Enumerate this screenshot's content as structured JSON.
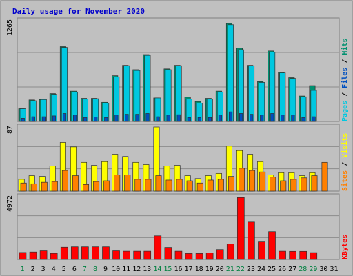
{
  "colors": {
    "background": "#c0c0c0",
    "border": "#808080",
    "title": "#0000cc",
    "hits": "#00c8e0",
    "files": "#009070",
    "pages": "#0050c0",
    "visits": "#ffff00",
    "sites": "#ff8000",
    "kbytes": "#ff0000",
    "weekend_label": "#008040",
    "grid": "#8c8c8c"
  },
  "chart_data": {
    "title": "Daily usage for November 2020",
    "type": "bar",
    "categories": [
      "1",
      "2",
      "3",
      "4",
      "5",
      "6",
      "7",
      "8",
      "9",
      "10",
      "11",
      "12",
      "13",
      "14",
      "15",
      "16",
      "17",
      "18",
      "19",
      "20",
      "21",
      "22",
      "23",
      "24",
      "25",
      "26",
      "27",
      "28",
      "29",
      "30",
      "31"
    ],
    "weekend_days": [
      "1",
      "7",
      "8",
      "14",
      "15",
      "21",
      "22",
      "28",
      "29"
    ],
    "panels": [
      {
        "ymax_label": "1265",
        "ylim": [
          0,
          1265
        ],
        "axis_labels": [
          {
            "text": "Pages",
            "color": "#00c8e0"
          },
          {
            "text": " / ",
            "color": "#000000"
          },
          {
            "text": "Files",
            "color": "#0050c0"
          },
          {
            "text": " / ",
            "color": "#000000"
          },
          {
            "text": "Hits",
            "color": "#009070"
          }
        ],
        "series": [
          {
            "name": "Hits",
            "color": "#009070",
            "values": [
              160,
              270,
              275,
              350,
              940,
              380,
              290,
              290,
              240,
              575,
              705,
              650,
              840,
              295,
              660,
              705,
              305,
              250,
              290,
              380,
              1230,
              920,
              705,
              500,
              885,
              620,
              550,
              320,
              450,
              0
            ]
          },
          {
            "name": "Files",
            "color": "#00c8e0",
            "values": [
              160,
              260,
              275,
              340,
              930,
              370,
              280,
              285,
              230,
              560,
              700,
              640,
              830,
              295,
              650,
              700,
              280,
              230,
              280,
              370,
              1215,
              900,
              700,
              490,
              870,
              610,
              540,
              310,
              390,
              0
            ]
          },
          {
            "name": "Pages",
            "color": "#0050c0",
            "values": [
              40,
              60,
              60,
              70,
              100,
              80,
              50,
              55,
              50,
              80,
              90,
              90,
              100,
              60,
              80,
              85,
              50,
              50,
              50,
              80,
              120,
              100,
              90,
              80,
              100,
              80,
              80,
              50,
              60,
              0
            ]
          }
        ]
      },
      {
        "ymax_label": "87",
        "ylim": [
          0,
          87
        ],
        "axis_labels": [
          {
            "text": "Sites",
            "color": "#ff8000"
          },
          {
            "text": " / ",
            "color": "#000000"
          },
          {
            "text": "Visits",
            "color": "#ffff00"
          }
        ],
        "series": [
          {
            "name": "Visits",
            "color": "#ffff00",
            "values": [
              16,
              21,
              20,
              34,
              66,
              60,
              39,
              35,
              40,
              50,
              47,
              39,
              36,
              87,
              34,
              35,
              21,
              17,
              21,
              24,
              61,
              55,
              50,
              40,
              22,
              25,
              25,
              21,
              25,
              0
            ]
          },
          {
            "name": "Sites",
            "color": "#ff8000",
            "values": [
              11,
              10,
              12,
              13,
              28,
              21,
              9,
              13,
              14,
              22,
              22,
              16,
              16,
              21,
              15,
              16,
              14,
              11,
              15,
              16,
              20,
              31,
              28,
              26,
              19,
              14,
              16,
              18,
              21,
              39
            ]
          }
        ]
      },
      {
        "ymax_label": "4972",
        "ylim": [
          0,
          4972
        ],
        "axis_labels": [
          {
            "text": "KBytes",
            "color": "#ff0000"
          }
        ],
        "series": [
          {
            "name": "KBytes",
            "color": "#ff0000",
            "values": [
              550,
              590,
              680,
              480,
              970,
              1000,
              1000,
              1000,
              1000,
              680,
              650,
              650,
              650,
              1870,
              950,
              650,
              470,
              470,
              520,
              780,
              1220,
              4900,
              2960,
              1440,
              2200,
              650,
              640,
              640,
              540,
              0
            ]
          }
        ]
      }
    ]
  }
}
